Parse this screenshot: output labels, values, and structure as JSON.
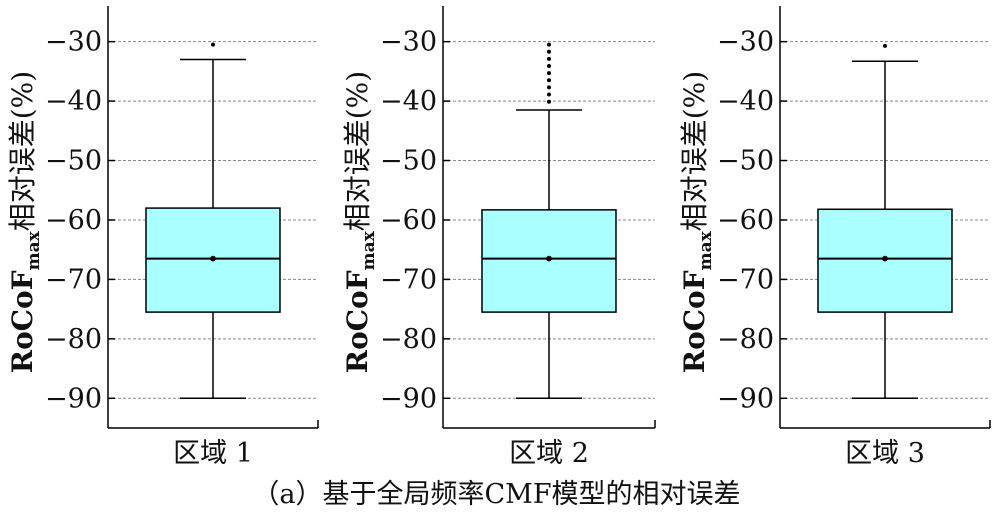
{
  "figure": {
    "caption": "（a）基于全局频率CMF模型的相对误差"
  },
  "chart_data": [
    {
      "type": "boxplot",
      "category": "区域 1",
      "ylabel_main": "RoCoF",
      "ylabel_sub": "max",
      "ylabel_rest": "相对误差(%)",
      "ylim": [
        -95,
        -24
      ],
      "yticks": [
        -90,
        -80,
        -70,
        -60,
        -50,
        -40,
        -30
      ],
      "ytick_labels": [
        "−90",
        "−80",
        "−70",
        "−60",
        "−50",
        "−40",
        "−30"
      ],
      "grid": true,
      "box": {
        "whisker_low": -90,
        "q1": -75.5,
        "median": -66.5,
        "mean": -66.5,
        "q3": -58,
        "whisker_high": -33
      },
      "outliers": [
        -30.5
      ],
      "box_color": "#aaffff"
    },
    {
      "type": "boxplot",
      "category": "区域 2",
      "ylabel_main": "RoCoF",
      "ylabel_sub": "max",
      "ylabel_rest": "相对误差(%)",
      "ylim": [
        -95,
        -24
      ],
      "yticks": [
        -90,
        -80,
        -70,
        -60,
        -50,
        -40,
        -30
      ],
      "ytick_labels": [
        "−90",
        "−80",
        "−70",
        "−60",
        "−50",
        "−40",
        "−30"
      ],
      "grid": true,
      "box": {
        "whisker_low": -90,
        "q1": -75.5,
        "median": -66.5,
        "mean": -66.5,
        "q3": -58.3,
        "whisker_high": -41.5
      },
      "outliers": [
        -30.5,
        -31.7,
        -32.9,
        -34.1,
        -35.3,
        -36.5,
        -37.7,
        -38.9,
        -40.1
      ],
      "box_color": "#aaffff"
    },
    {
      "type": "boxplot",
      "category": "区域 3",
      "ylabel_main": "RoCoF",
      "ylabel_sub": "max",
      "ylabel_rest": "相对误差(%)",
      "ylim": [
        -95,
        -24
      ],
      "yticks": [
        -90,
        -80,
        -70,
        -60,
        -50,
        -40,
        -30
      ],
      "ytick_labels": [
        "−90",
        "−80",
        "−70",
        "−60",
        "−50",
        "−40",
        "−30"
      ],
      "grid": true,
      "box": {
        "whisker_low": -90,
        "q1": -75.5,
        "median": -66.5,
        "mean": -66.5,
        "q3": -58.2,
        "whisker_high": -33.3
      },
      "outliers": [
        -30.7
      ],
      "box_color": "#aaffff"
    }
  ]
}
